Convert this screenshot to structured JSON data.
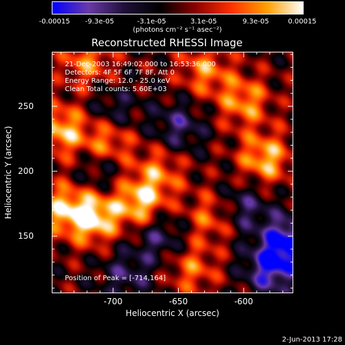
{
  "chart_data": {
    "type": "heatmap",
    "title": "Reconstructed RHESSI Image",
    "colorbar": {
      "ticks": [
        "-0.00015",
        "-9.3e-05",
        "-3.1e-05",
        "3.1e-05",
        "9.3e-05",
        "0.00015"
      ],
      "tick_values": [
        -0.00015,
        -9.3e-05,
        -3.1e-05,
        3.1e-05,
        9.3e-05,
        0.00015
      ],
      "units_text": "(photons cm⁻² s⁻¹ asec⁻²)",
      "range": [
        -0.00015,
        0.00015
      ],
      "colors": [
        "#0000ff",
        "#6a3aa8",
        "#20103a",
        "#000000",
        "#8a0000",
        "#ff3000",
        "#ffa000",
        "#ffffff"
      ]
    },
    "info_lines": [
      "21-Dec-2003 16:49:02.000 to 16:53:36.000",
      "Detectors: 4F 5F 6F 7F 8F, Att 0",
      "Energy Range: 12.0 - 25.0 keV",
      "Clean    Total counts: 5.60E+03"
    ],
    "peak_text": "Position of Peak = [-714,164]",
    "xlabel": "Heliocentric X (arcsec)",
    "ylabel": "Heliocentric Y (arcsec)",
    "xlim": [
      -747,
      -562
    ],
    "ylim": [
      106,
      292
    ],
    "xticks": [
      -700,
      -650,
      -600
    ],
    "yticks": [
      150,
      200,
      250
    ],
    "xtick_labels": [
      "-700",
      "-650",
      "-600"
    ],
    "ytick_labels": [
      "150",
      "200",
      "250"
    ],
    "peak": [
      -714,
      164
    ],
    "bright_sources": [
      {
        "x": -716,
        "y": 165,
        "value": 0.00015
      },
      {
        "x": -680,
        "y": 176,
        "value": 0.00013
      },
      {
        "x": -704,
        "y": 224,
        "value": 0.00011
      },
      {
        "x": -740,
        "y": 232,
        "value": 0.00012
      },
      {
        "x": -584,
        "y": 210,
        "value": 0.00012
      },
      {
        "x": -600,
        "y": 254,
        "value": 0.0001
      },
      {
        "x": -630,
        "y": 278,
        "value": 9e-05
      },
      {
        "x": -665,
        "y": 200,
        "value": 8e-05
      },
      {
        "x": -625,
        "y": 165,
        "value": 8e-05
      },
      {
        "x": -740,
        "y": 172,
        "value": 0.0001
      },
      {
        "x": -720,
        "y": 285,
        "value": 9e-05
      },
      {
        "x": -640,
        "y": 125,
        "value": 8e-05
      }
    ],
    "dark_sources": [
      {
        "x": -700,
        "y": 245,
        "value": -7e-05
      },
      {
        "x": -665,
        "y": 150,
        "value": -8e-05
      },
      {
        "x": -566,
        "y": 146,
        "value": -0.00014
      },
      {
        "x": -650,
        "y": 235,
        "value": -8e-05
      },
      {
        "x": -600,
        "y": 172,
        "value": -8e-05
      },
      {
        "x": -690,
        "y": 120,
        "value": -7e-05
      },
      {
        "x": -580,
        "y": 125,
        "value": -0.00012
      },
      {
        "x": -710,
        "y": 200,
        "value": -6e-05
      }
    ]
  },
  "footer": {
    "date": "2-Jun-2013 17:28"
  }
}
